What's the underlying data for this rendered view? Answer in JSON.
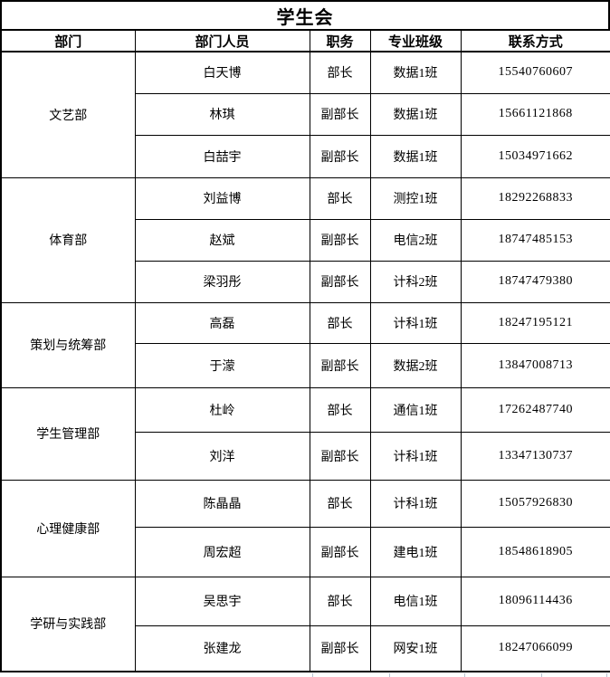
{
  "title": "学生会",
  "table": {
    "headers": [
      "部门",
      "部门人员",
      "职务",
      "专业班级",
      "联系方式"
    ],
    "departments": [
      {
        "name": "文艺部",
        "members": [
          {
            "person": "白天博",
            "role": "部长",
            "class": "数据1班",
            "phone": "15540760607"
          },
          {
            "person": "林琪",
            "role": "副部长",
            "class": "数据1班",
            "phone": "15661121868"
          },
          {
            "person": "白喆宇",
            "role": "副部长",
            "class": "数据1班",
            "phone": "15034971662"
          }
        ]
      },
      {
        "name": "体育部",
        "members": [
          {
            "person": "刘益博",
            "role": "部长",
            "class": "测控1班",
            "phone": "18292268833"
          },
          {
            "person": "赵斌",
            "role": "副部长",
            "class": "电信2班",
            "phone": "18747485153"
          },
          {
            "person": "梁羽彤",
            "role": "副部长",
            "class": "计科2班",
            "phone": "18747479380"
          }
        ]
      },
      {
        "name": "策划与统筹部",
        "members": [
          {
            "person": "高磊",
            "role": "部长",
            "class": "计科1班",
            "phone": "18247195121"
          },
          {
            "person": "于濛",
            "role": "副部长",
            "class": "数据2班",
            "phone": "13847008713"
          }
        ]
      },
      {
        "name": "学生管理部",
        "members": [
          {
            "person": "杜岭",
            "role": "部长",
            "class": "通信1班",
            "phone": "17262487740"
          },
          {
            "person": "刘洋",
            "role": "副部长",
            "class": "计科1班",
            "phone": "13347130737"
          }
        ]
      },
      {
        "name": "心理健康部",
        "members": [
          {
            "person": "陈晶晶",
            "role": "部长",
            "class": "计科1班",
            "phone": "15057926830"
          },
          {
            "person": "周宏超",
            "role": "副部长",
            "class": "建电1班",
            "phone": "18548618905"
          }
        ]
      },
      {
        "name": "学研与实践部",
        "members": [
          {
            "person": "吴思宇",
            "role": "部长",
            "class": "电信1班",
            "phone": "18096114436"
          },
          {
            "person": "张建龙",
            "role": "副部长",
            "class": "网安1班",
            "phone": "18247066099"
          }
        ]
      }
    ]
  },
  "colors": {
    "border": "#000000",
    "text": "#000000",
    "background": "#ffffff",
    "gridline": "#b9c2d0"
  }
}
